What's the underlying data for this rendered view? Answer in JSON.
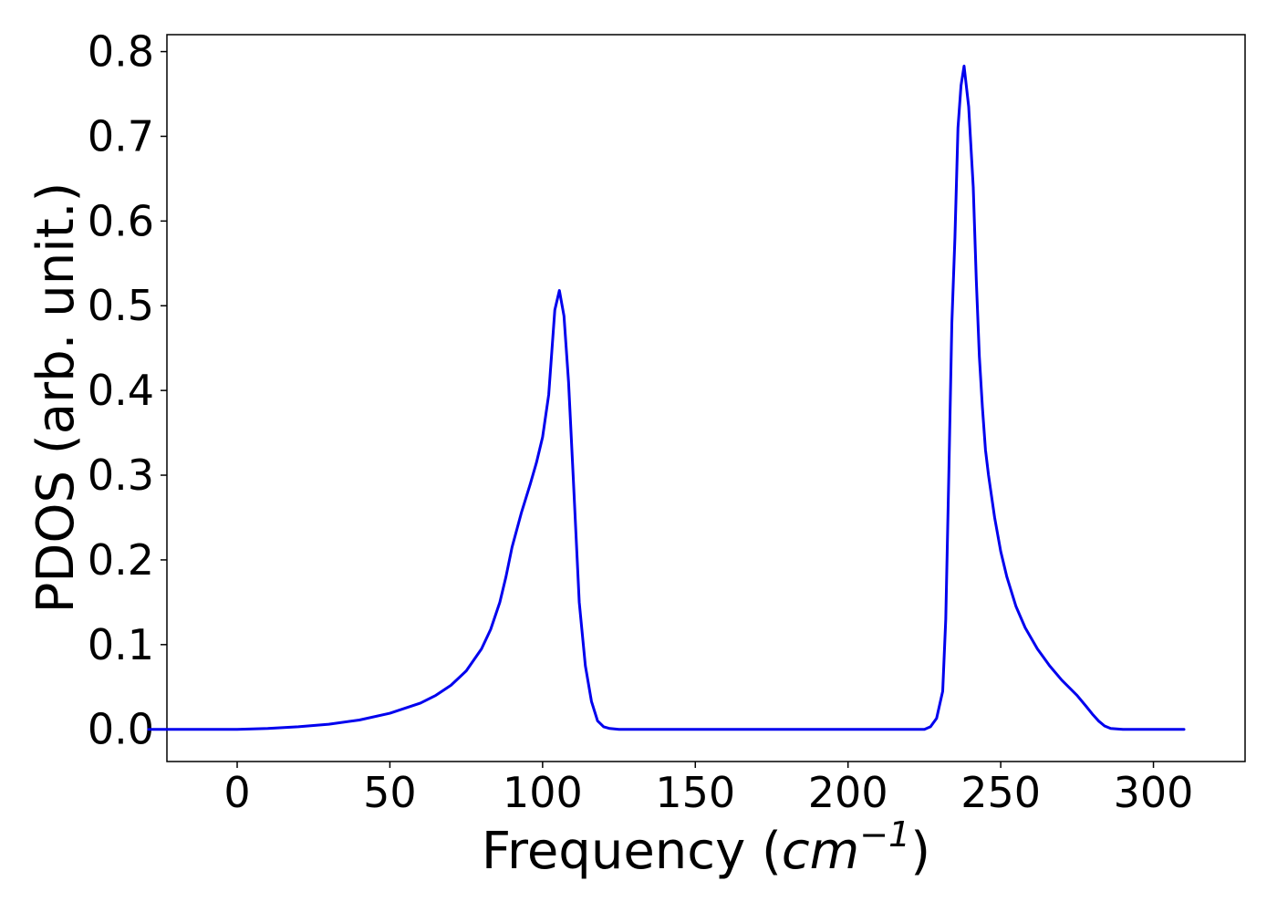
{
  "chart_data": {
    "type": "line",
    "title": "",
    "xlabel_prefix": "Frequency (",
    "xlabel_unit_base": "cm",
    "xlabel_unit_exp": "−1",
    "xlabel_suffix": ")",
    "ylabel": "PDOS (arb. unit.)",
    "xlim": [
      -23,
      330
    ],
    "ylim": [
      -0.038,
      0.82
    ],
    "x_ticks": [
      0,
      50,
      100,
      150,
      200,
      250,
      300
    ],
    "y_ticks": [
      0.0,
      0.1,
      0.2,
      0.3,
      0.4,
      0.5,
      0.6,
      0.7,
      0.8
    ],
    "x_tick_labels": [
      "0",
      "50",
      "100",
      "150",
      "200",
      "250",
      "300"
    ],
    "y_tick_labels": [
      "0.0",
      "0.1",
      "0.2",
      "0.3",
      "0.4",
      "0.5",
      "0.6",
      "0.7",
      "0.8"
    ],
    "grid": false,
    "legend": "none",
    "series": [
      {
        "color": "#0000ee",
        "x": [
          -29,
          0,
          10,
          20,
          30,
          40,
          50,
          60,
          65,
          70,
          75,
          80,
          83,
          86,
          88,
          90,
          93,
          96,
          98,
          100,
          102,
          104,
          105.5,
          107,
          108.5,
          110,
          112,
          114,
          116,
          118,
          120,
          122,
          125,
          130,
          150,
          200,
          225,
          227,
          229,
          231,
          232,
          233,
          234,
          235,
          236,
          237,
          238,
          239.5,
          241,
          242,
          243,
          244,
          245,
          246,
          248,
          250,
          252,
          255,
          258,
          262,
          266,
          270,
          275,
          278,
          280,
          282,
          284,
          286,
          290,
          300,
          310
        ],
        "y": [
          0.0,
          0.0,
          0.001,
          0.003,
          0.006,
          0.011,
          0.019,
          0.031,
          0.04,
          0.052,
          0.069,
          0.095,
          0.118,
          0.15,
          0.18,
          0.215,
          0.255,
          0.29,
          0.315,
          0.345,
          0.395,
          0.495,
          0.518,
          0.488,
          0.41,
          0.3,
          0.15,
          0.075,
          0.033,
          0.01,
          0.003,
          0.001,
          0.0,
          0.0,
          0.0,
          0.0,
          0.0,
          0.003,
          0.013,
          0.045,
          0.13,
          0.3,
          0.48,
          0.58,
          0.71,
          0.76,
          0.783,
          0.735,
          0.64,
          0.53,
          0.44,
          0.38,
          0.33,
          0.3,
          0.25,
          0.21,
          0.18,
          0.145,
          0.12,
          0.095,
          0.075,
          0.058,
          0.04,
          0.027,
          0.018,
          0.01,
          0.004,
          0.001,
          0.0,
          0.0,
          0.0
        ]
      }
    ]
  }
}
